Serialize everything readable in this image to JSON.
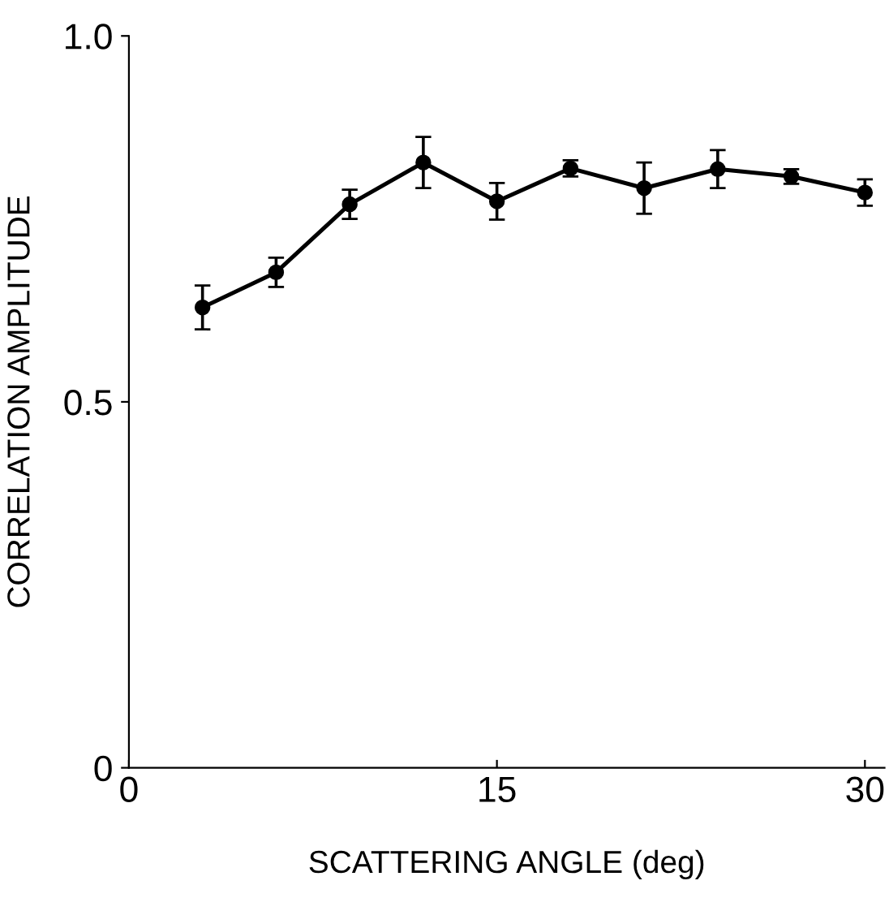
{
  "chart_data": {
    "type": "line",
    "xlabel": "SCATTERING ANGLE (deg)",
    "ylabel": "CORRELATION AMPLITUDE",
    "x": [
      3,
      6,
      9,
      12,
      15,
      18,
      21,
      24,
      27,
      30
    ],
    "values": [
      0.629,
      0.677,
      0.77,
      0.827,
      0.774,
      0.819,
      0.792,
      0.818,
      0.808,
      0.786
    ],
    "errors": [
      0.03,
      0.02,
      0.02,
      0.035,
      0.025,
      0.011,
      0.035,
      0.026,
      0.01,
      0.018
    ],
    "color": "#000000",
    "marker": "circle",
    "line_style": "solid",
    "xlim": [
      0,
      30.8
    ],
    "xticks": [
      0,
      15,
      30
    ],
    "ylim": [
      0,
      1.0
    ],
    "yticks": [
      0,
      0.5,
      {
        "value": 1.0,
        "label": "1.0"
      }
    ],
    "grid": false
  }
}
